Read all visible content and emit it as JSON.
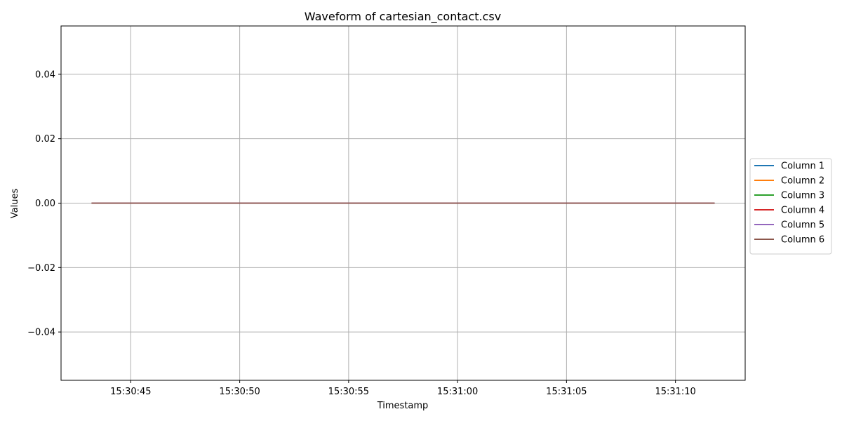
{
  "chart_data": {
    "type": "line",
    "title": "Waveform of cartesian_contact.csv",
    "xlabel": "Timestamp",
    "ylabel": "Values",
    "x_range": [
      "15:30:43.2",
      "15:31:11.8"
    ],
    "xlim": [
      "15:30:41.8",
      "15:31:13.2"
    ],
    "ylim": [
      -0.055,
      0.055
    ],
    "x_ticks": [
      "15:30:45",
      "15:30:50",
      "15:30:55",
      "15:31:00",
      "15:31:05",
      "15:31:10"
    ],
    "y_ticks": [
      -0.04,
      -0.02,
      0.0,
      0.02,
      0.04
    ],
    "y_tick_labels": [
      "−0.04",
      "−0.02",
      "0.00",
      "0.02",
      "0.04"
    ],
    "grid": true,
    "legend_position": "right, outside plot area",
    "series": [
      {
        "name": "Column 1",
        "color": "#1f77b4",
        "values": [
          0,
          0
        ]
      },
      {
        "name": "Column 2",
        "color": "#ff7f0e",
        "values": [
          0,
          0
        ]
      },
      {
        "name": "Column 3",
        "color": "#2ca02c",
        "values": [
          0,
          0
        ]
      },
      {
        "name": "Column 4",
        "color": "#d62728",
        "values": [
          0,
          0
        ]
      },
      {
        "name": "Column 5",
        "color": "#9467bd",
        "values": [
          0,
          0
        ]
      },
      {
        "name": "Column 6",
        "color": "#8c564b",
        "values": [
          0,
          0
        ]
      }
    ]
  }
}
